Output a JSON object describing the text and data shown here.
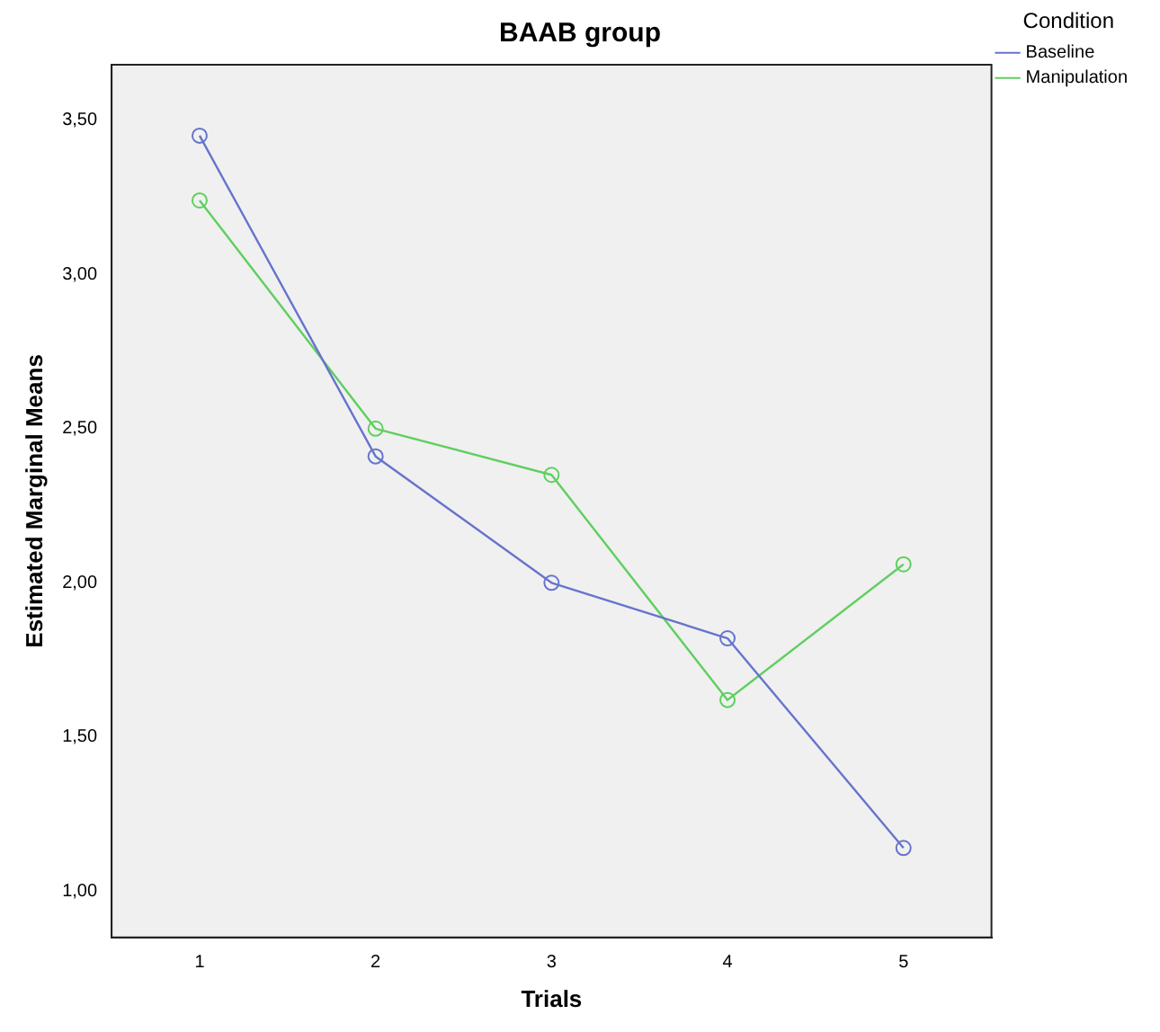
{
  "chart_data": {
    "type": "line",
    "title": "BAAB group",
    "xlabel": "Trials",
    "ylabel": "Estimated Marginal Means",
    "legend_title": "Condition",
    "categories": [
      "1",
      "2",
      "3",
      "4",
      "5"
    ],
    "series": [
      {
        "name": "Baseline",
        "color": "#6674cc",
        "values": [
          3.45,
          2.41,
          2.0,
          1.82,
          1.14
        ]
      },
      {
        "name": "Manipulation",
        "color": "#5fcf5f",
        "values": [
          3.24,
          2.5,
          2.35,
          1.62,
          2.06
        ]
      }
    ],
    "ylim": [
      0.85,
      3.68
    ],
    "yticks": [
      {
        "value": 1,
        "label": "1,00"
      },
      {
        "value": 1.5,
        "label": "1,50"
      },
      {
        "value": 2,
        "label": "2,00"
      },
      {
        "value": 2.5,
        "label": "2,50"
      },
      {
        "value": 3,
        "label": "3,00"
      },
      {
        "value": 3.5,
        "label": "3,50"
      }
    ],
    "grid": false,
    "legend": "right",
    "marker": "circle",
    "line_style": "solid"
  }
}
